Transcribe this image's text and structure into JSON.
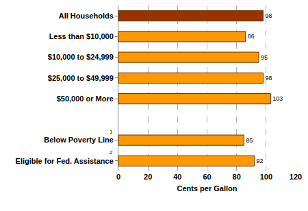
{
  "chart_data": {
    "type": "bar",
    "orientation": "horizontal",
    "categories": [
      "All Households",
      "Less than $10,000",
      "$10,000 to $24,999",
      "$25,000 to $49,999",
      "$50,000 or More",
      null,
      "Below Poverty Line",
      "Eligible for Fed. Assistance"
    ],
    "values": [
      98,
      86,
      95,
      98,
      103,
      null,
      85,
      92
    ],
    "colors": [
      "#993300",
      "#ff9900",
      "#ff9900",
      "#ff9900",
      "#ff9900",
      null,
      "#ff9900",
      "#ff9900"
    ],
    "x_label": "Cents per Gallon",
    "xlim": [
      0,
      120
    ],
    "xticks": [
      0,
      20,
      40,
      60,
      80,
      100,
      120
    ],
    "grid": true,
    "data_labels": true,
    "annotations": [
      {
        "text": "1",
        "category": "Below Poverty Line"
      },
      {
        "text": "2",
        "category": "Eligible for Fed. Assistance"
      }
    ]
  }
}
